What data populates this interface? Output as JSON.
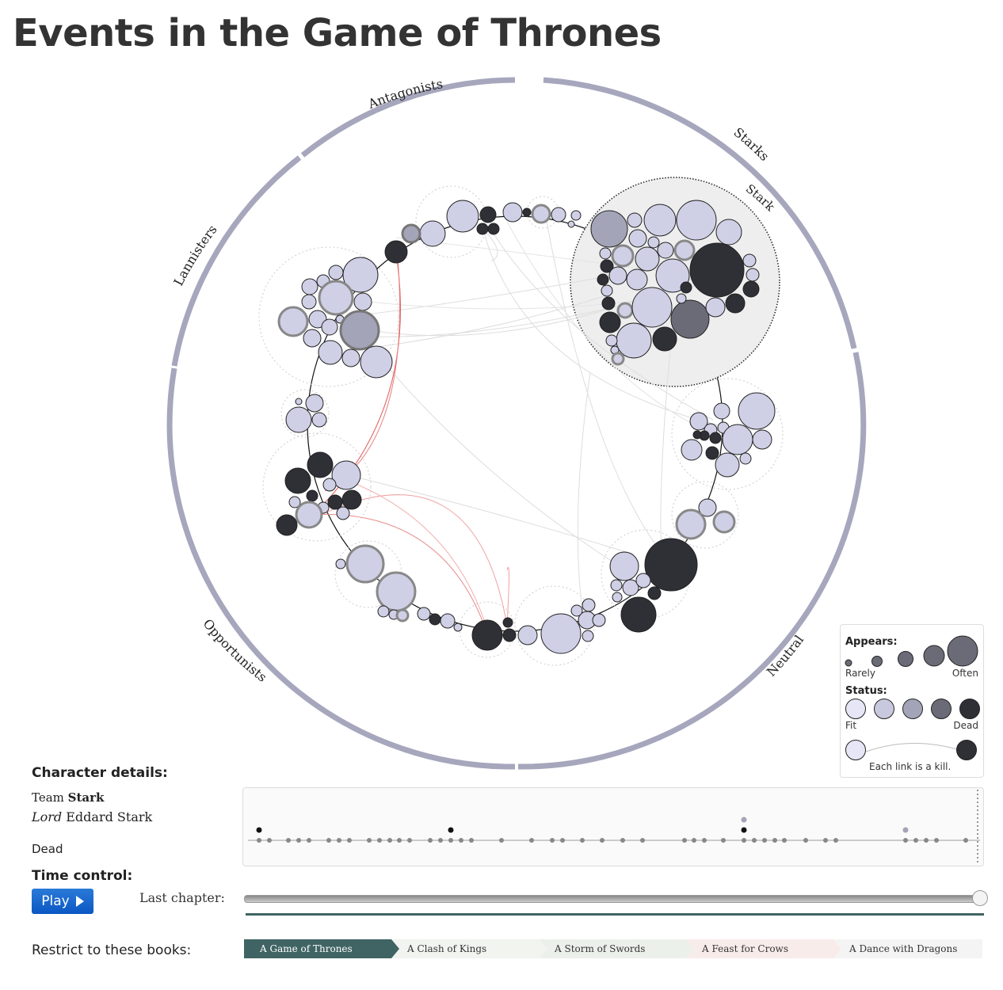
{
  "title": "Events in the Game of Thrones",
  "groups": {
    "antagonists": "Antagonists",
    "starks": "Starks",
    "stark_house": "Stark",
    "lannisters": "Lannisters",
    "opportunists": "Opportunists",
    "neutral": "Neutral"
  },
  "legend": {
    "appears": "Appears:",
    "rarely": "Rarely",
    "often": "Often",
    "status": "Status:",
    "fit": "Fit",
    "dead": "Dead",
    "link_note": "Each link is a kill."
  },
  "details": {
    "heading": "Character details:",
    "team_prefix": "Team",
    "team": "Stark",
    "title": "Lord",
    "name": "Eddard Stark",
    "status": "Dead"
  },
  "time_control": {
    "heading": "Time control:",
    "play_label": "Play",
    "last_chapter_label": "Last chapter:",
    "progress": 1.0
  },
  "books": {
    "label": "Restrict to these books:",
    "items": [
      "A Game of Thrones",
      "A Clash of Kings",
      "A Storm of Swords",
      "A Feast for Crows",
      "A Dance with Dragons"
    ]
  },
  "colors": {
    "ring": "#a6a6bd",
    "fit": "#cfcfe6",
    "mid": "#a4a4b8",
    "worse": "#6b6b78",
    "dead": "#2f2f36",
    "kill_link": "#e06666",
    "book_active": "#3f6463"
  }
}
